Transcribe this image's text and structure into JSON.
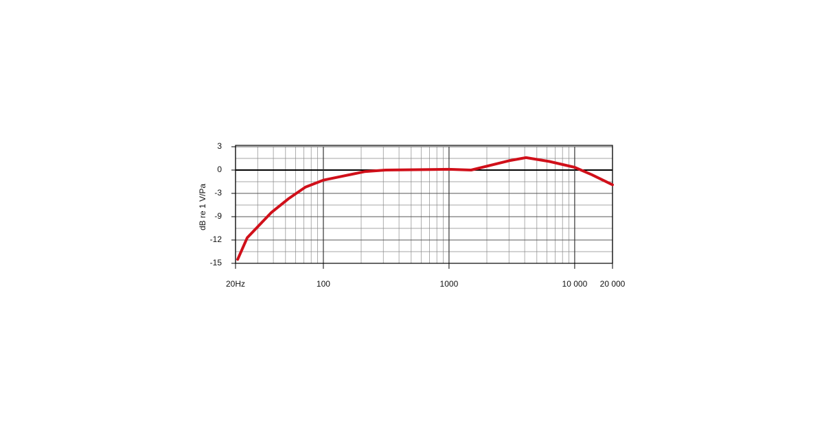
{
  "chart_data": {
    "type": "line",
    "ylabel": "dB re 1 V/Pa",
    "x": [
      20.8,
      24.8,
      38.6,
      52.7,
      72,
      100,
      213,
      313,
      1000,
      1500,
      3000,
      4100,
      6300,
      10000,
      13700,
      20000
    ],
    "series": [
      {
        "color": "#d0101a",
        "values": [
          -14.5,
          -11.7,
          -7.9,
          -4.4,
          -2.2,
          -1.3,
          -0.2,
          0,
          0.1,
          0,
          1.2,
          1.6,
          1.1,
          0.35,
          -0.6,
          -1.9
        ]
      }
    ],
    "xlog": true,
    "xlim": [
      20,
      20000
    ],
    "xticks": [
      {
        "value": 20,
        "label": "20Hz"
      },
      100,
      1000,
      {
        "value": 10000,
        "label": "10 000"
      },
      {
        "value": 20000,
        "label": "20 000"
      }
    ],
    "ylim": [
      -15,
      3
    ],
    "yticks": [
      3,
      0,
      -3,
      -9,
      -12,
      -15
    ],
    "grid": true
  }
}
